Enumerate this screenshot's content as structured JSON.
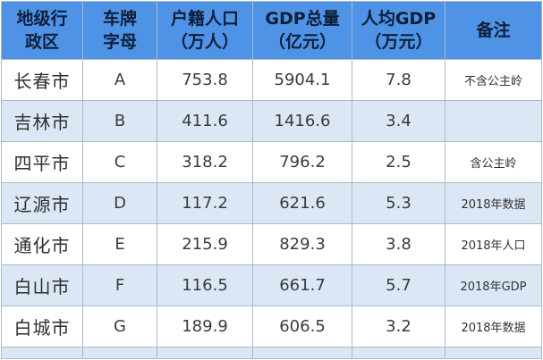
{
  "table": {
    "headers": [
      {
        "lines": [
          "地级行",
          "政区"
        ]
      },
      {
        "lines": [
          "车牌",
          "字母"
        ]
      },
      {
        "lines": [
          "户籍人口",
          "（万人）"
        ]
      },
      {
        "lines": [
          "GDP总量",
          "（亿元）"
        ]
      },
      {
        "lines": [
          "人均GDP",
          "（万元）"
        ]
      },
      {
        "lines": [
          "备注"
        ]
      }
    ],
    "rows": [
      {
        "city": "长春市",
        "plate": "A",
        "population": "753.8",
        "gdp": "5904.1",
        "gdp_per_capita": "7.8",
        "note": "不含公主岭"
      },
      {
        "city": "吉林市",
        "plate": "B",
        "population": "411.6",
        "gdp": "1416.6",
        "gdp_per_capita": "3.4",
        "note": ""
      },
      {
        "city": "四平市",
        "plate": "C",
        "population": "318.2",
        "gdp": "796.2",
        "gdp_per_capita": "2.5",
        "note": "含公主岭"
      },
      {
        "city": "辽源市",
        "plate": "D",
        "population": "117.2",
        "gdp": "621.6",
        "gdp_per_capita": "5.3",
        "note": "2018年数据"
      },
      {
        "city": "通化市",
        "plate": "E",
        "population": "215.9",
        "gdp": "829.3",
        "gdp_per_capita": "3.8",
        "note": "2018年人口"
      },
      {
        "city": "白山市",
        "plate": "F",
        "population": "116.5",
        "gdp": "661.7",
        "gdp_per_capita": "5.7",
        "note": "2018年GDP"
      },
      {
        "city": "白城市",
        "plate": "G",
        "population": "189.9",
        "gdp": "606.5",
        "gdp_per_capita": "3.2",
        "note": "2018年数据"
      }
    ]
  },
  "colors": {
    "header_bg": "#4f93e6",
    "header_text": "#0f1f3a",
    "stripe_bg": "#dce7f6",
    "border": "#a9b9cc"
  }
}
